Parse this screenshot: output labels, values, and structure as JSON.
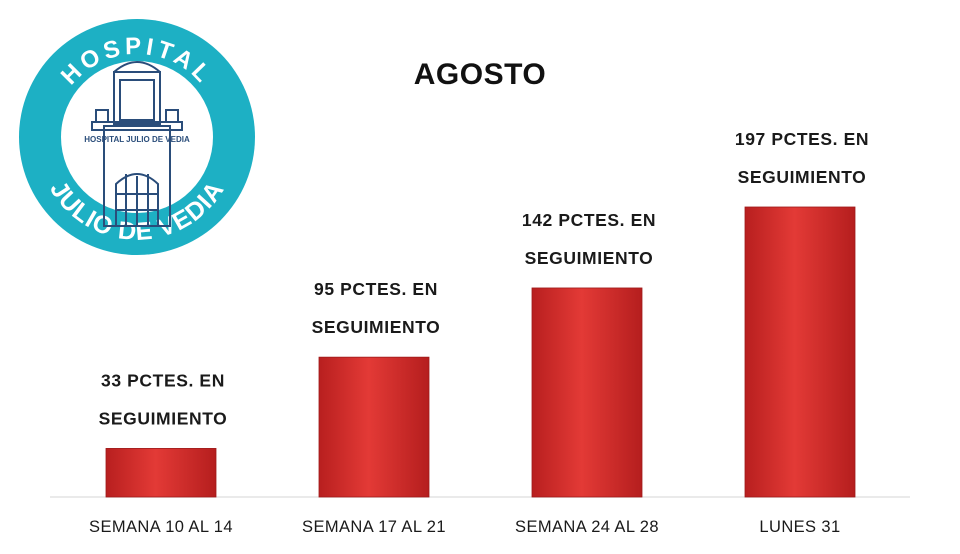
{
  "logo": {
    "text_top": "HOSPITAL",
    "text_bottom": "JULIO DE VEDIA",
    "inner_text": "HOSPITAL JULIO DE VEDIA",
    "color": "#1db0c4"
  },
  "chart_data": {
    "type": "bar",
    "title": "AGOSTO",
    "categories": [
      "SEMANA 10 AL 14",
      "SEMANA 17 AL 21",
      "SEMANA 24 AL 28",
      "LUNES 31"
    ],
    "values": [
      33,
      95,
      142,
      197
    ],
    "data_labels": [
      [
        "33 PCTES. EN",
        "SEGUIMIENTO"
      ],
      [
        "95 PCTES. EN",
        "SEGUIMIENTO"
      ],
      [
        "142 PCTES. EN",
        "SEGUIMIENTO"
      ],
      [
        "197 PCTES. EN",
        "SEGUIMIENTO"
      ]
    ],
    "ylim": [
      0,
      200
    ],
    "grid": false,
    "bar_color": "#d8332f"
  }
}
